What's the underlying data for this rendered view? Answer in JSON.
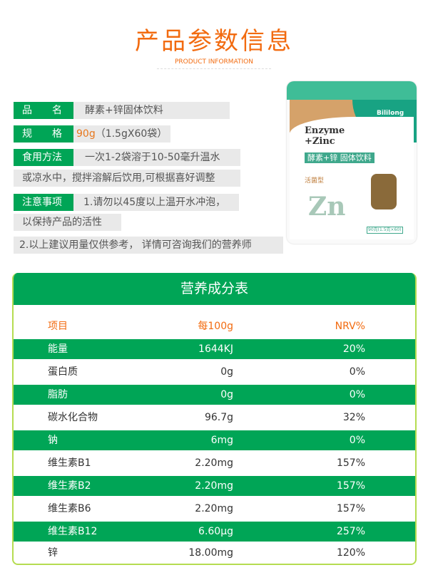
{
  "header": {
    "title": "产品参数信息",
    "subtitle": "PRODUCT INFORMATION"
  },
  "params": {
    "name_label": "品　　名",
    "name_value": "酵素+锌固体饮料",
    "spec_label": "规　　格",
    "spec_weight": "90g",
    "spec_rest": "（1.5gX60袋）",
    "usage_label": "食用方法",
    "usage_line1": "一次1-2袋溶于10-50毫升温水",
    "usage_line2": "或凉水中，搅拌溶解后饮用,可根据喜好调整",
    "notes_label": "注意事项",
    "notes_line1": "1.请勿以45度以上温开水冲泡，",
    "notes_line2": "以保持产品的活性",
    "notes_line3": "2.以上建议用量仅供参考， 详情可咨询我们的营养师"
  },
  "product_image": {
    "brand": "Bililong",
    "en": "Enzyme +Zinc",
    "cn": "酵素+锌  固体饮料",
    "type": "活菌型",
    "net": "90克(1.5克×60)"
  },
  "nutrition": {
    "title": "营养成分表",
    "columns": [
      "项目",
      "每100g",
      "NRV%"
    ],
    "rows": [
      {
        "item": "能量",
        "per100g": "1644KJ",
        "nrv": "20%"
      },
      {
        "item": "蛋白质",
        "per100g": "0g",
        "nrv": "0%"
      },
      {
        "item": "脂肪",
        "per100g": "0g",
        "nrv": "0%"
      },
      {
        "item": "碳水化合物",
        "per100g": "96.7g",
        "nrv": "32%"
      },
      {
        "item": "钠",
        "per100g": "6mg",
        "nrv": "0%"
      },
      {
        "item": "维生素B1",
        "per100g": "2.20mg",
        "nrv": "157%"
      },
      {
        "item": "维生素B2",
        "per100g": "2.20mg",
        "nrv": "157%"
      },
      {
        "item": "维生素B6",
        "per100g": "2.20mg",
        "nrv": "157%"
      },
      {
        "item": "维生素B12",
        "per100g": "6.60μg",
        "nrv": "257%"
      },
      {
        "item": "锌",
        "per100g": "18.00mg",
        "nrv": "120%"
      }
    ]
  },
  "colors": {
    "accent": "#f26b10",
    "green": "#00a556",
    "border": "#b5dc50"
  }
}
